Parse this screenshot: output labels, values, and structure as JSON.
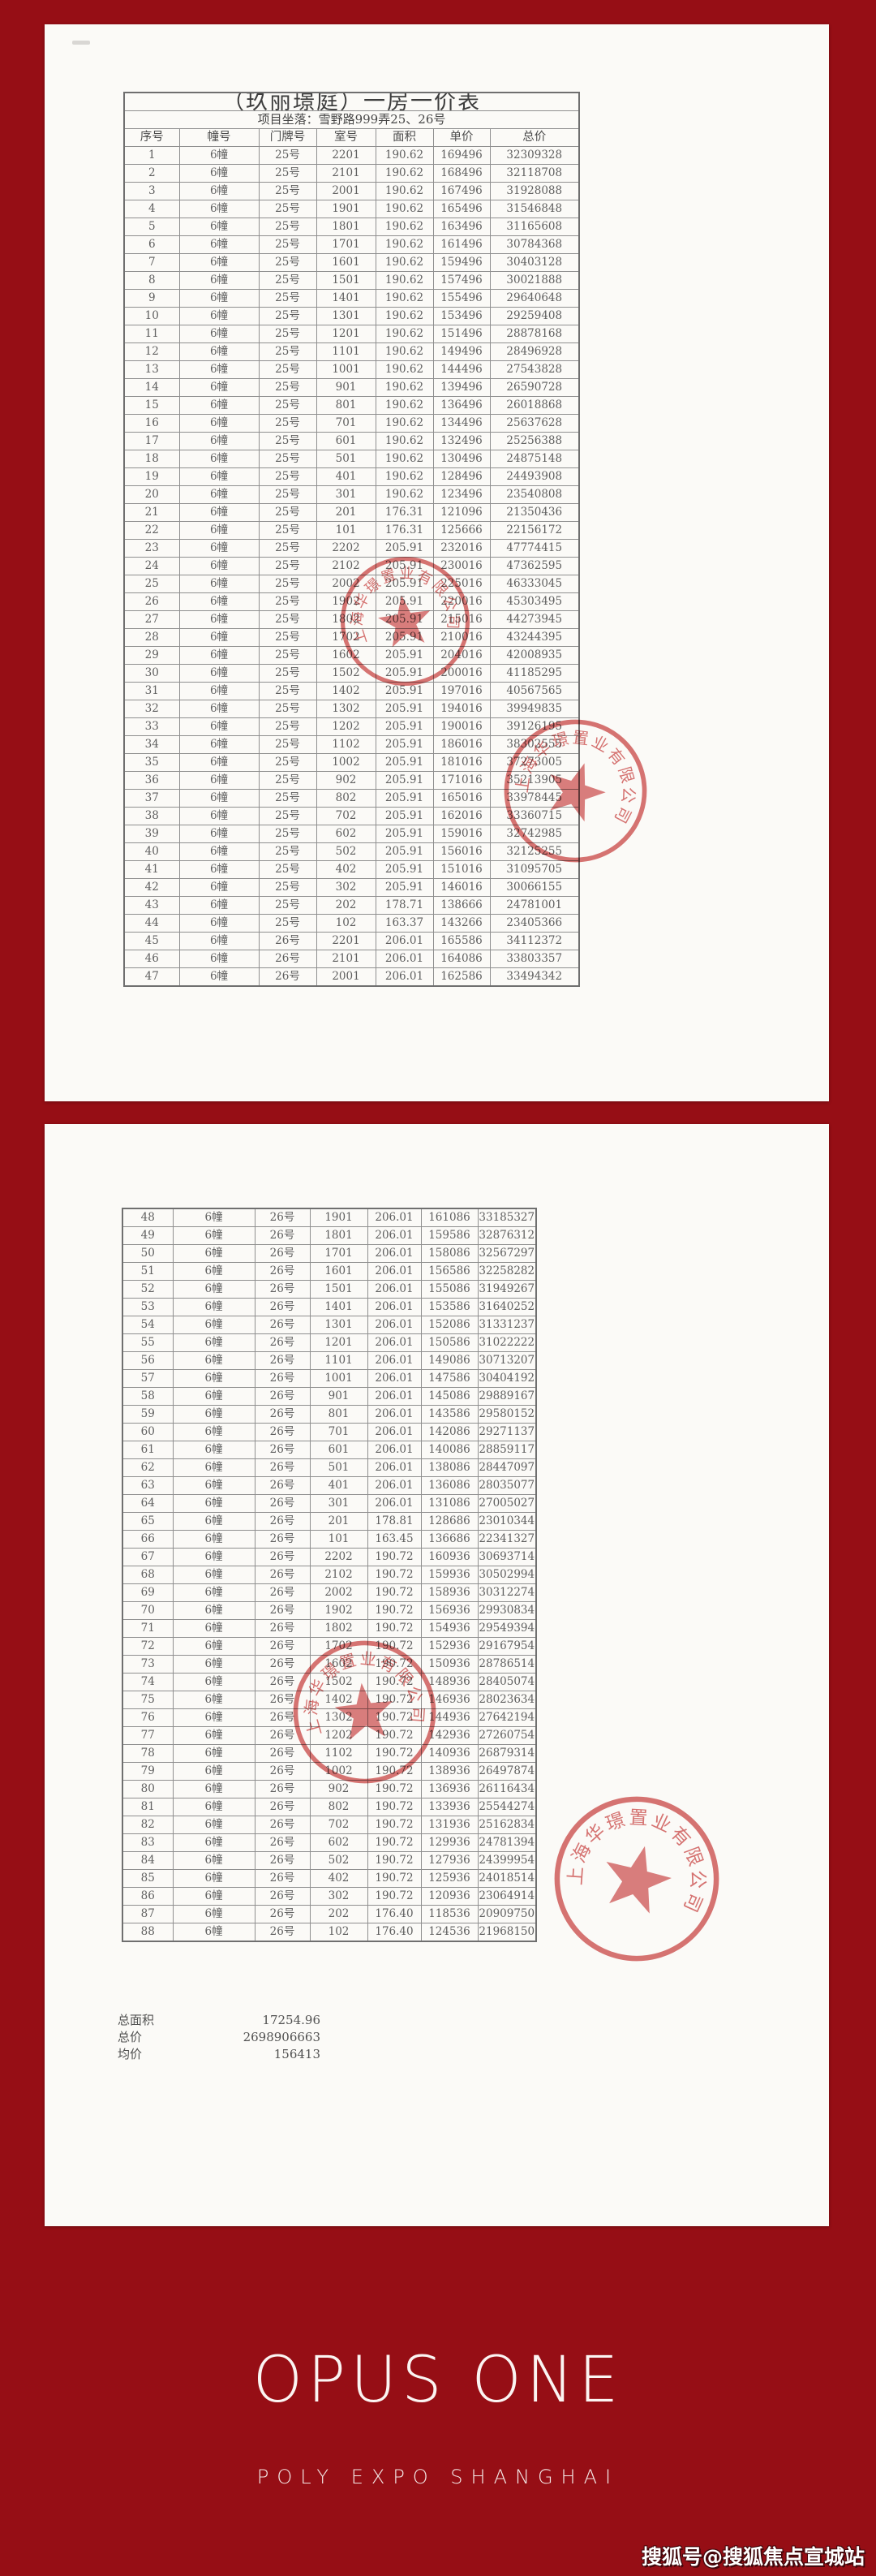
{
  "page1": {
    "title": "（玖丽璟庭）一房一价表",
    "location_label": "项目坐落：",
    "location_value": "雪野路999弄25、26号",
    "columns": [
      "序号",
      "幢号",
      "门牌号",
      "室号",
      "面积",
      "单价",
      "总价"
    ],
    "rows": [
      [
        "1",
        "6幢",
        "25号",
        "2201",
        "190.62",
        "169496",
        "32309328"
      ],
      [
        "2",
        "6幢",
        "25号",
        "2101",
        "190.62",
        "168496",
        "32118708"
      ],
      [
        "3",
        "6幢",
        "25号",
        "2001",
        "190.62",
        "167496",
        "31928088"
      ],
      [
        "4",
        "6幢",
        "25号",
        "1901",
        "190.62",
        "165496",
        "31546848"
      ],
      [
        "5",
        "6幢",
        "25号",
        "1801",
        "190.62",
        "163496",
        "31165608"
      ],
      [
        "6",
        "6幢",
        "25号",
        "1701",
        "190.62",
        "161496",
        "30784368"
      ],
      [
        "7",
        "6幢",
        "25号",
        "1601",
        "190.62",
        "159496",
        "30403128"
      ],
      [
        "8",
        "6幢",
        "25号",
        "1501",
        "190.62",
        "157496",
        "30021888"
      ],
      [
        "9",
        "6幢",
        "25号",
        "1401",
        "190.62",
        "155496",
        "29640648"
      ],
      [
        "10",
        "6幢",
        "25号",
        "1301",
        "190.62",
        "153496",
        "29259408"
      ],
      [
        "11",
        "6幢",
        "25号",
        "1201",
        "190.62",
        "151496",
        "28878168"
      ],
      [
        "12",
        "6幢",
        "25号",
        "1101",
        "190.62",
        "149496",
        "28496928"
      ],
      [
        "13",
        "6幢",
        "25号",
        "1001",
        "190.62",
        "144496",
        "27543828"
      ],
      [
        "14",
        "6幢",
        "25号",
        "901",
        "190.62",
        "139496",
        "26590728"
      ],
      [
        "15",
        "6幢",
        "25号",
        "801",
        "190.62",
        "136496",
        "26018868"
      ],
      [
        "16",
        "6幢",
        "25号",
        "701",
        "190.62",
        "134496",
        "25637628"
      ],
      [
        "17",
        "6幢",
        "25号",
        "601",
        "190.62",
        "132496",
        "25256388"
      ],
      [
        "18",
        "6幢",
        "25号",
        "501",
        "190.62",
        "130496",
        "24875148"
      ],
      [
        "19",
        "6幢",
        "25号",
        "401",
        "190.62",
        "128496",
        "24493908"
      ],
      [
        "20",
        "6幢",
        "25号",
        "301",
        "190.62",
        "123496",
        "23540808"
      ],
      [
        "21",
        "6幢",
        "25号",
        "201",
        "176.31",
        "121096",
        "21350436"
      ],
      [
        "22",
        "6幢",
        "25号",
        "101",
        "176.31",
        "125666",
        "22156172"
      ],
      [
        "23",
        "6幢",
        "25号",
        "2202",
        "205.91",
        "232016",
        "47774415"
      ],
      [
        "24",
        "6幢",
        "25号",
        "2102",
        "205.91",
        "230016",
        "47362595"
      ],
      [
        "25",
        "6幢",
        "25号",
        "2002",
        "205.91",
        "225016",
        "46333045"
      ],
      [
        "26",
        "6幢",
        "25号",
        "1902",
        "205.91",
        "220016",
        "45303495"
      ],
      [
        "27",
        "6幢",
        "25号",
        "1802",
        "205.91",
        "215016",
        "44273945"
      ],
      [
        "28",
        "6幢",
        "25号",
        "1702",
        "205.91",
        "210016",
        "43244395"
      ],
      [
        "29",
        "6幢",
        "25号",
        "1602",
        "205.91",
        "204016",
        "42008935"
      ],
      [
        "30",
        "6幢",
        "25号",
        "1502",
        "205.91",
        "200016",
        "41185295"
      ],
      [
        "31",
        "6幢",
        "25号",
        "1402",
        "205.91",
        "197016",
        "40567565"
      ],
      [
        "32",
        "6幢",
        "25号",
        "1302",
        "205.91",
        "194016",
        "39949835"
      ],
      [
        "33",
        "6幢",
        "25号",
        "1202",
        "205.91",
        "190016",
        "39126195"
      ],
      [
        "34",
        "6幢",
        "25号",
        "1102",
        "205.91",
        "186016",
        "38302555"
      ],
      [
        "35",
        "6幢",
        "25号",
        "1002",
        "205.91",
        "181016",
        "37273005"
      ],
      [
        "36",
        "6幢",
        "25号",
        "902",
        "205.91",
        "171016",
        "35213905"
      ],
      [
        "37",
        "6幢",
        "25号",
        "802",
        "205.91",
        "165016",
        "33978445"
      ],
      [
        "38",
        "6幢",
        "25号",
        "702",
        "205.91",
        "162016",
        "33360715"
      ],
      [
        "39",
        "6幢",
        "25号",
        "602",
        "205.91",
        "159016",
        "32742985"
      ],
      [
        "40",
        "6幢",
        "25号",
        "502",
        "205.91",
        "156016",
        "32125255"
      ],
      [
        "41",
        "6幢",
        "25号",
        "402",
        "205.91",
        "151016",
        "31095705"
      ],
      [
        "42",
        "6幢",
        "25号",
        "302",
        "205.91",
        "146016",
        "30066155"
      ],
      [
        "43",
        "6幢",
        "25号",
        "202",
        "178.71",
        "138666",
        "24781001"
      ],
      [
        "44",
        "6幢",
        "25号",
        "102",
        "163.37",
        "143266",
        "23405366"
      ],
      [
        "45",
        "6幢",
        "26号",
        "2201",
        "206.01",
        "165586",
        "34112372"
      ],
      [
        "46",
        "6幢",
        "26号",
        "2101",
        "206.01",
        "164086",
        "33803357"
      ],
      [
        "47",
        "6幢",
        "26号",
        "2001",
        "206.01",
        "162586",
        "33494342"
      ]
    ]
  },
  "page2": {
    "rows": [
      [
        "48",
        "6幢",
        "26号",
        "1901",
        "206.01",
        "161086",
        "33185327"
      ],
      [
        "49",
        "6幢",
        "26号",
        "1801",
        "206.01",
        "159586",
        "32876312"
      ],
      [
        "50",
        "6幢",
        "26号",
        "1701",
        "206.01",
        "158086",
        "32567297"
      ],
      [
        "51",
        "6幢",
        "26号",
        "1601",
        "206.01",
        "156586",
        "32258282"
      ],
      [
        "52",
        "6幢",
        "26号",
        "1501",
        "206.01",
        "155086",
        "31949267"
      ],
      [
        "53",
        "6幢",
        "26号",
        "1401",
        "206.01",
        "153586",
        "31640252"
      ],
      [
        "54",
        "6幢",
        "26号",
        "1301",
        "206.01",
        "152086",
        "31331237"
      ],
      [
        "55",
        "6幢",
        "26号",
        "1201",
        "206.01",
        "150586",
        "31022222"
      ],
      [
        "56",
        "6幢",
        "26号",
        "1101",
        "206.01",
        "149086",
        "30713207"
      ],
      [
        "57",
        "6幢",
        "26号",
        "1001",
        "206.01",
        "147586",
        "30404192"
      ],
      [
        "58",
        "6幢",
        "26号",
        "901",
        "206.01",
        "145086",
        "29889167"
      ],
      [
        "59",
        "6幢",
        "26号",
        "801",
        "206.01",
        "143586",
        "29580152"
      ],
      [
        "60",
        "6幢",
        "26号",
        "701",
        "206.01",
        "142086",
        "29271137"
      ],
      [
        "61",
        "6幢",
        "26号",
        "601",
        "206.01",
        "140086",
        "28859117"
      ],
      [
        "62",
        "6幢",
        "26号",
        "501",
        "206.01",
        "138086",
        "28447097"
      ],
      [
        "63",
        "6幢",
        "26号",
        "401",
        "206.01",
        "136086",
        "28035077"
      ],
      [
        "64",
        "6幢",
        "26号",
        "301",
        "206.01",
        "131086",
        "27005027"
      ],
      [
        "65",
        "6幢",
        "26号",
        "201",
        "178.81",
        "128686",
        "23010344"
      ],
      [
        "66",
        "6幢",
        "26号",
        "101",
        "163.45",
        "136686",
        "22341327"
      ],
      [
        "67",
        "6幢",
        "26号",
        "2202",
        "190.72",
        "160936",
        "30693714"
      ],
      [
        "68",
        "6幢",
        "26号",
        "2102",
        "190.72",
        "159936",
        "30502994"
      ],
      [
        "69",
        "6幢",
        "26号",
        "2002",
        "190.72",
        "158936",
        "30312274"
      ],
      [
        "70",
        "6幢",
        "26号",
        "1902",
        "190.72",
        "156936",
        "29930834"
      ],
      [
        "71",
        "6幢",
        "26号",
        "1802",
        "190.72",
        "154936",
        "29549394"
      ],
      [
        "72",
        "6幢",
        "26号",
        "1702",
        "190.72",
        "152936",
        "29167954"
      ],
      [
        "73",
        "6幢",
        "26号",
        "1602",
        "190.72",
        "150936",
        "28786514"
      ],
      [
        "74",
        "6幢",
        "26号",
        "1502",
        "190.72",
        "148936",
        "28405074"
      ],
      [
        "75",
        "6幢",
        "26号",
        "1402",
        "190.72",
        "146936",
        "28023634"
      ],
      [
        "76",
        "6幢",
        "26号",
        "1302",
        "190.72",
        "144936",
        "27642194"
      ],
      [
        "77",
        "6幢",
        "26号",
        "1202",
        "190.72",
        "142936",
        "27260754"
      ],
      [
        "78",
        "6幢",
        "26号",
        "1102",
        "190.72",
        "140936",
        "26879314"
      ],
      [
        "79",
        "6幢",
        "26号",
        "1002",
        "190.72",
        "138936",
        "26497874"
      ],
      [
        "80",
        "6幢",
        "26号",
        "902",
        "190.72",
        "136936",
        "26116434"
      ],
      [
        "81",
        "6幢",
        "26号",
        "802",
        "190.72",
        "133936",
        "25544274"
      ],
      [
        "82",
        "6幢",
        "26号",
        "702",
        "190.72",
        "131936",
        "25162834"
      ],
      [
        "83",
        "6幢",
        "26号",
        "602",
        "190.72",
        "129936",
        "24781394"
      ],
      [
        "84",
        "6幢",
        "26号",
        "502",
        "190.72",
        "127936",
        "24399954"
      ],
      [
        "85",
        "6幢",
        "26号",
        "402",
        "190.72",
        "125936",
        "24018514"
      ],
      [
        "86",
        "6幢",
        "26号",
        "302",
        "190.72",
        "120936",
        "23064914"
      ],
      [
        "87",
        "6幢",
        "26号",
        "202",
        "176.40",
        "118536",
        "20909750"
      ],
      [
        "88",
        "6幢",
        "26号",
        "102",
        "176.40",
        "124536",
        "21968150"
      ]
    ],
    "summary": [
      {
        "label": "总面积",
        "value": "17254.96"
      },
      {
        "label": "总价",
        "value": "2698906663"
      },
      {
        "label": "均价",
        "value": "156413"
      }
    ]
  },
  "seal": {
    "arc_text": "上海华璟置业有限公司"
  },
  "footer": {
    "brand": "OPUS ONE",
    "subtitle": "POLY EXPO SHANGHAI",
    "watermark": "搜狐号@搜狐焦点宣城站"
  },
  "colors": {
    "background": "#960e15",
    "page": "#fbfaf7",
    "seal": "#d05252",
    "table_text": "#5f5f5f",
    "brand_text": "#fbf4f2"
  }
}
